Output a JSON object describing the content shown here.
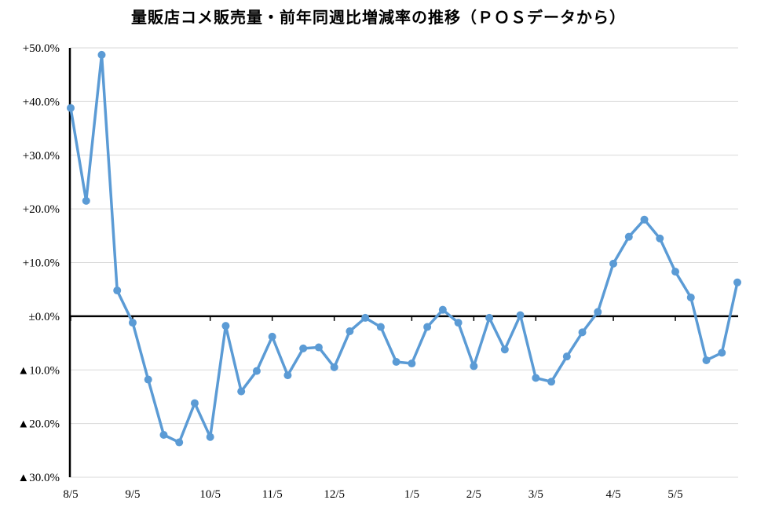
{
  "chart_data": {
    "type": "line",
    "title": "量販店コメ販売量・前年同週比増減率の推移（ＰＯＳデータから）",
    "xlabel": "",
    "ylabel": "",
    "ylim": [
      -30,
      50
    ],
    "y_ticks": [
      50,
      40,
      30,
      20,
      10,
      0,
      -10,
      -20,
      -30
    ],
    "y_tick_labels": [
      "+50.0%",
      "+40.0%",
      "+30.0%",
      "+20.0%",
      "+10.0%",
      "±0.0%",
      "▲10.0%",
      "▲20.0%",
      "▲30.0%"
    ],
    "x_tick_labels": [
      "8/5",
      "9/5",
      "10/5",
      "11/5",
      "12/5",
      "1/5",
      "2/5",
      "3/5",
      "4/5",
      "5/5"
    ],
    "x_tick_weeks": [
      0,
      4,
      9,
      13,
      17,
      22,
      26,
      30,
      35,
      39
    ],
    "grid": "horizontal",
    "legend": "none",
    "series": [
      {
        "color": "#5B9BD5",
        "weeks": [
          0,
          1,
          2,
          3,
          4,
          5,
          6,
          7,
          8,
          9,
          10,
          11,
          12,
          13,
          14,
          15,
          16,
          17,
          18,
          19,
          20,
          21,
          22,
          23,
          24,
          25,
          26,
          27,
          28,
          29,
          30,
          31,
          32,
          33,
          34,
          35,
          36,
          37,
          38,
          39,
          40,
          41,
          42,
          43
        ],
        "values": [
          38.8,
          21.5,
          48.7,
          4.8,
          -1.2,
          -11.8,
          -22.1,
          -23.5,
          -16.2,
          -22.5,
          -1.8,
          -14.0,
          -10.2,
          -3.8,
          -11.0,
          -6.0,
          -5.8,
          -9.5,
          -2.8,
          -0.3,
          -2.0,
          -8.5,
          -8.8,
          -2.0,
          1.2,
          -1.2,
          -9.3,
          -0.3,
          -6.2,
          0.2,
          -11.5,
          -12.2,
          -7.5,
          -3.0,
          0.8,
          9.8,
          14.8,
          18.0,
          14.5,
          8.3,
          3.5,
          -8.2,
          -6.8,
          6.3
        ]
      }
    ]
  }
}
